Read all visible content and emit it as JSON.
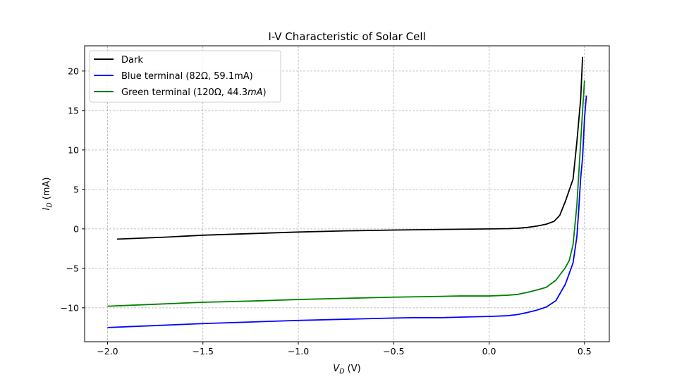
{
  "chart_data": {
    "type": "line",
    "title": "I-V Characteristic of Solar Cell",
    "xlabel": {
      "main": "V",
      "sub": "D",
      "unit": " (V)"
    },
    "ylabel": {
      "main": "I",
      "sub": "D",
      "unit": " (mA)"
    },
    "xlim": [
      -2.12,
      0.63
    ],
    "ylim": [
      -14.3,
      23.2
    ],
    "xticks": [
      -2.0,
      -1.5,
      -1.0,
      -0.5,
      0.0,
      0.5
    ],
    "xtick_labels": [
      "−2.0",
      "−1.5",
      "−1.0",
      "−0.5",
      "0.0",
      "0.5"
    ],
    "yticks": [
      -10,
      -5,
      0,
      5,
      10,
      15,
      20
    ],
    "ytick_labels": [
      "−10",
      "−5",
      "0",
      "5",
      "10",
      "15",
      "20"
    ],
    "grid": true,
    "legend_position": "top-left",
    "series": [
      {
        "name": "Dark",
        "color": "#000000",
        "x": [
          -1.95,
          -1.7,
          -1.5,
          -1.25,
          -1.0,
          -0.75,
          -0.5,
          -0.25,
          0.0,
          0.1,
          0.15,
          0.2,
          0.25,
          0.3,
          0.34,
          0.37,
          0.4,
          0.44,
          0.46,
          0.48,
          0.49
        ],
        "y": [
          -1.3,
          -1.05,
          -0.8,
          -0.6,
          -0.4,
          -0.25,
          -0.15,
          -0.07,
          0.0,
          0.03,
          0.08,
          0.18,
          0.35,
          0.6,
          0.95,
          1.7,
          3.5,
          6.3,
          11.0,
          16.5,
          21.8
        ]
      },
      {
        "name": "Blue terminal (82Ω, 59.1mA)",
        "color": "#0000ff",
        "x": [
          -2.0,
          -1.75,
          -1.5,
          -1.25,
          -1.0,
          -0.75,
          -0.5,
          -0.4,
          -0.25,
          -0.1,
          0.0,
          0.1,
          0.15,
          0.2,
          0.25,
          0.3,
          0.35,
          0.4,
          0.44,
          0.46,
          0.47,
          0.48,
          0.49,
          0.5,
          0.51
        ],
        "y": [
          -12.5,
          -12.25,
          -12.0,
          -11.8,
          -11.6,
          -11.45,
          -11.3,
          -11.25,
          -11.25,
          -11.15,
          -11.1,
          -11.0,
          -10.85,
          -10.6,
          -10.3,
          -9.9,
          -9.1,
          -7.0,
          -4.3,
          -1.0,
          2.5,
          6.5,
          9.0,
          14.0,
          16.9
        ]
      },
      {
        "name": "Green terminal (120Ω, 44.3mA)",
        "color": "#008000",
        "x": [
          -2.0,
          -1.75,
          -1.5,
          -1.25,
          -1.0,
          -0.75,
          -0.5,
          -0.25,
          -0.15,
          0.0,
          0.1,
          0.15,
          0.2,
          0.25,
          0.3,
          0.35,
          0.4,
          0.42,
          0.44,
          0.45,
          0.46,
          0.47,
          0.48,
          0.49,
          0.5
        ],
        "y": [
          -9.8,
          -9.55,
          -9.3,
          -9.15,
          -8.95,
          -8.8,
          -8.65,
          -8.55,
          -8.5,
          -8.5,
          -8.4,
          -8.3,
          -8.05,
          -7.75,
          -7.4,
          -6.5,
          -4.9,
          -4.0,
          -2.0,
          0.5,
          3.0,
          7.0,
          11.0,
          15.0,
          18.8
        ]
      }
    ],
    "legend": [
      {
        "label": "Dark"
      },
      {
        "label": "Blue terminal (82Ω, 59.1mA)"
      },
      {
        "label_pre": "Green terminal (120Ω, 44.3",
        "label_italic": "mA",
        "label_post": ")"
      }
    ]
  }
}
